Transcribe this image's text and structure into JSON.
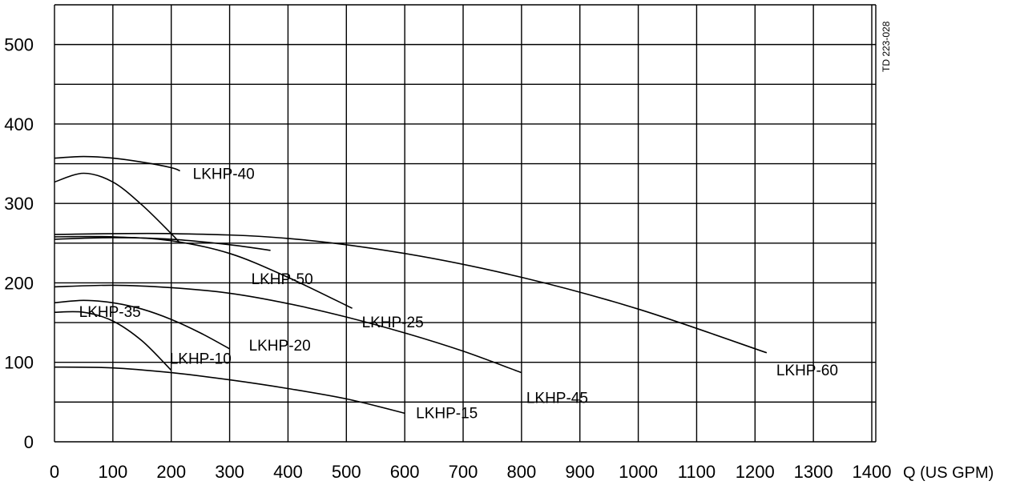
{
  "chart_data": {
    "type": "line",
    "title": "",
    "xlabel": "Q (US GPM)",
    "ylabel": "",
    "xlim": [
      0,
      1400
    ],
    "ylim": [
      0,
      550
    ],
    "x_ticks": [
      "0",
      "100",
      "200",
      "300",
      "400",
      "500",
      "600",
      "700",
      "800",
      "900",
      "1000",
      "1100",
      "1200",
      "1300",
      "1400"
    ],
    "y_ticks": [
      "0",
      "100",
      "200",
      "300",
      "400",
      "500"
    ],
    "grid": true,
    "figure_code": "TD 223-028",
    "series": [
      {
        "name": "LKHP-40",
        "x": [
          0,
          50,
          100,
          150,
          200,
          215
        ],
        "y": [
          357,
          359,
          357,
          352,
          345,
          341
        ]
      },
      {
        "name": "LKHP-35",
        "x": [
          0,
          50,
          100,
          150,
          200,
          215
        ],
        "y": [
          327,
          338,
          327,
          298,
          262,
          250
        ]
      },
      {
        "name": "LKHP-50",
        "x": [
          0,
          100,
          200,
          300,
          370
        ],
        "y": [
          255,
          257,
          255,
          248,
          241
        ]
      },
      {
        "name": "LKHP-25",
        "x": [
          0,
          100,
          200,
          300,
          400,
          510
        ],
        "y": [
          258,
          258,
          253,
          237,
          207,
          168
        ]
      },
      {
        "name": "LKHP-60",
        "x": [
          0,
          200,
          400,
          600,
          800,
          1000,
          1220
        ],
        "y": [
          261,
          262,
          256,
          237,
          207,
          167,
          112
        ]
      },
      {
        "name": "LKHP-45",
        "x": [
          0,
          100,
          200,
          300,
          400,
          500,
          600,
          700,
          800
        ],
        "y": [
          195,
          197,
          194,
          187,
          174,
          157,
          137,
          114,
          87
        ]
      },
      {
        "name": "LKHP-20",
        "x": [
          0,
          50,
          100,
          150,
          200,
          250,
          300
        ],
        "y": [
          175,
          178,
          175,
          167,
          154,
          137,
          117
        ]
      },
      {
        "name": "LKHP-10",
        "x": [
          0,
          50,
          100,
          150,
          200
        ],
        "y": [
          163,
          163,
          152,
          127,
          90
        ]
      },
      {
        "name": "LKHP-15",
        "x": [
          0,
          100,
          200,
          300,
          400,
          500,
          600
        ],
        "y": [
          94,
          93,
          87,
          78,
          67,
          54,
          36
        ]
      }
    ]
  }
}
